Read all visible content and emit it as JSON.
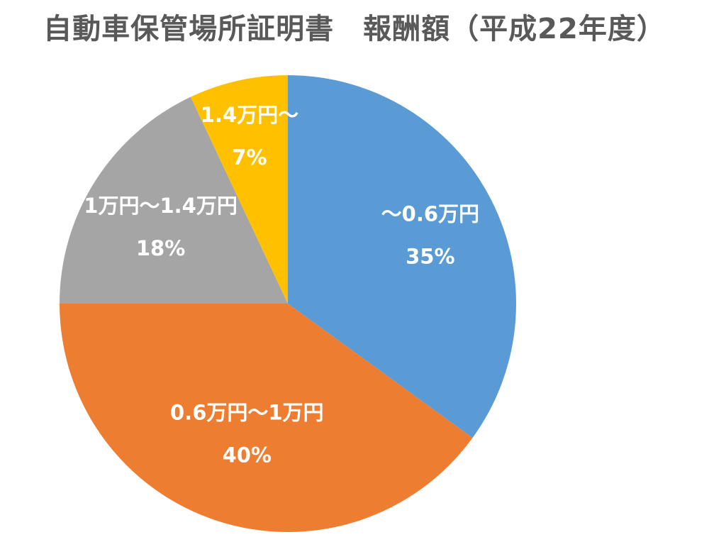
{
  "chart_data": {
    "type": "pie",
    "title": "自動車保管場所証明書　報酬額（平成22年度）",
    "start_angle_deg": 0,
    "direction": "clockwise",
    "slices": [
      {
        "label": "～0.6万円",
        "value": 35,
        "value_text": "35%",
        "color": "#5B9BD5"
      },
      {
        "label": "0.6万円～1万円",
        "value": 40,
        "value_text": "40%",
        "color": "#ED7D31"
      },
      {
        "label": "1万円～1.4万円",
        "value": 18,
        "value_text": "18%",
        "color": "#A5A5A5"
      },
      {
        "label": "1.4万円～",
        "value": 7,
        "value_text": "7%",
        "color": "#FFC000"
      }
    ]
  }
}
